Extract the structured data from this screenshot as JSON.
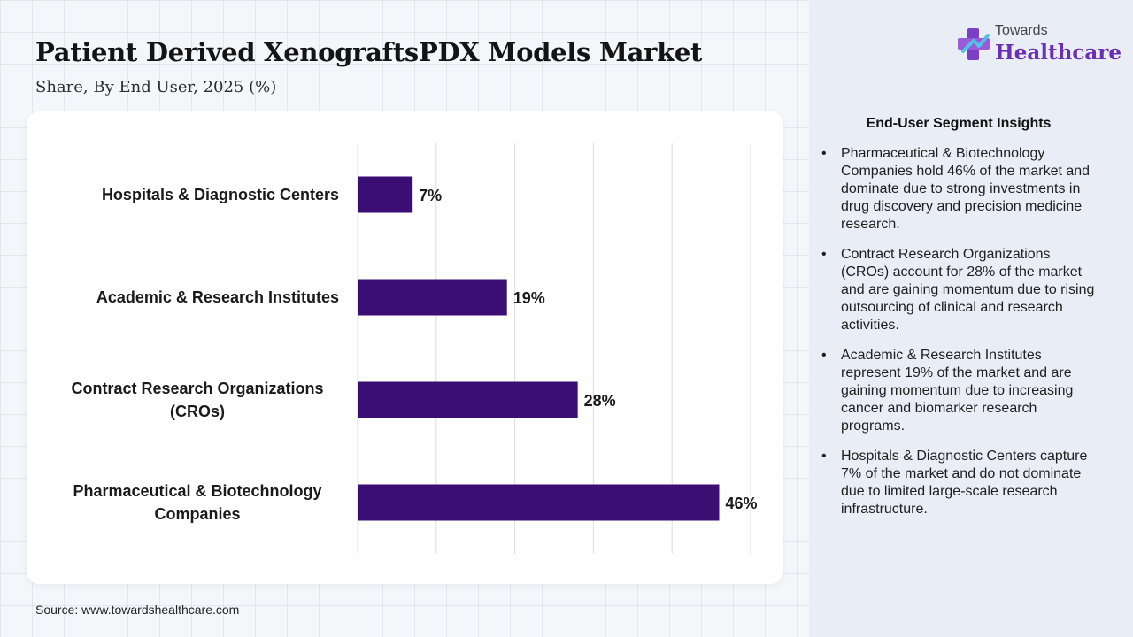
{
  "header": {
    "title": "Patient Derived XenograftsPDX Models Market",
    "subtitle": "Share, By End User, 2025 (%)"
  },
  "logo": {
    "small_text": "Towards",
    "brand_text": "Healthcare",
    "icon": "plus-cross-icon"
  },
  "colors": {
    "bar": "#3a0e73",
    "brand": "#6a2fb3",
    "panel": "#e9eef6"
  },
  "chart_data": {
    "type": "bar",
    "orientation": "horizontal",
    "categories": [
      "Hospitals & Diagnostic Centers",
      "Academic & Research Institutes",
      "Contract Research Organizations (CROs)",
      "Pharmaceutical & Biotechnology Companies"
    ],
    "values": [
      7,
      19,
      28,
      46
    ],
    "data_labels": [
      "7%",
      "19%",
      "28%",
      "46%"
    ],
    "xlim": [
      0,
      50
    ],
    "grid": true,
    "title": "",
    "xlabel": "",
    "ylabel": ""
  },
  "insights": {
    "title": "End-User Segment Insights",
    "items": [
      "Pharmaceutical & Biotechnology Companies hold 46% of the market and dominate due to strong investments in drug discovery and precision medicine research.",
      "Contract Research Organizations (CROs) account for 28% of the market and are gaining momentum due to rising outsourcing of clinical and research activities.",
      "Academic & Research Institutes represent 19% of the market and are gaining momentum due to increasing cancer and biomarker research programs.",
      "Hospitals & Diagnostic Centers capture 7% of the market and do not dominate due to limited large-scale research infrastructure."
    ]
  },
  "footer": {
    "source": "Source: www.towardshealthcare.com"
  }
}
